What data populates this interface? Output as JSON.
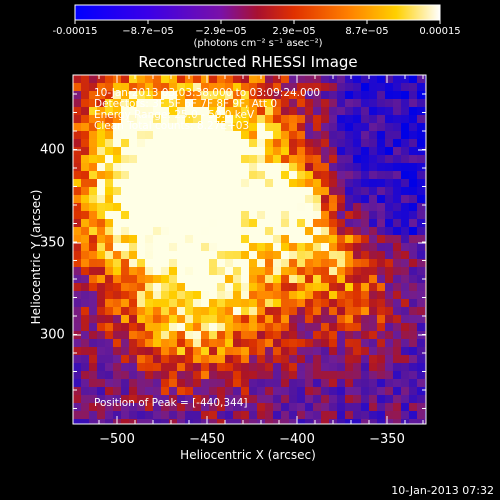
{
  "colorbar": {
    "ticks": [
      "-0.00015",
      "−8.7e−05",
      "−2.9e−05",
      "2.9e−05",
      "8.7e−05",
      "0.00015"
    ],
    "unit_label": "(photons cm⁻² s⁻¹ asec⁻²)"
  },
  "title": "Reconstructed RHESSI Image",
  "info": {
    "line1": "10-Jan-2013 03:03:38.000 to 03:09:24.000",
    "line2": "Detectors: 3F 5F 6F 7F 8F 9F, Att 0",
    "line3": "Energy Range: 25.0 - 50.0 keV",
    "line4": "Clean      Total counts: 8.27E+03"
  },
  "peak_text": "Position of Peak = [-440,344]",
  "axes": {
    "xlabel": "Heliocentric X (arcsec)",
    "ylabel": "Heliocentric Y (arcsec)",
    "xticks": [
      "−500",
      "−450",
      "−400",
      "−350"
    ],
    "yticks": [
      "400",
      "350",
      "300"
    ]
  },
  "footer": "10-Jan-2013 07:32",
  "colors": {
    "background": "#000000",
    "text": "#ffffff"
  }
}
